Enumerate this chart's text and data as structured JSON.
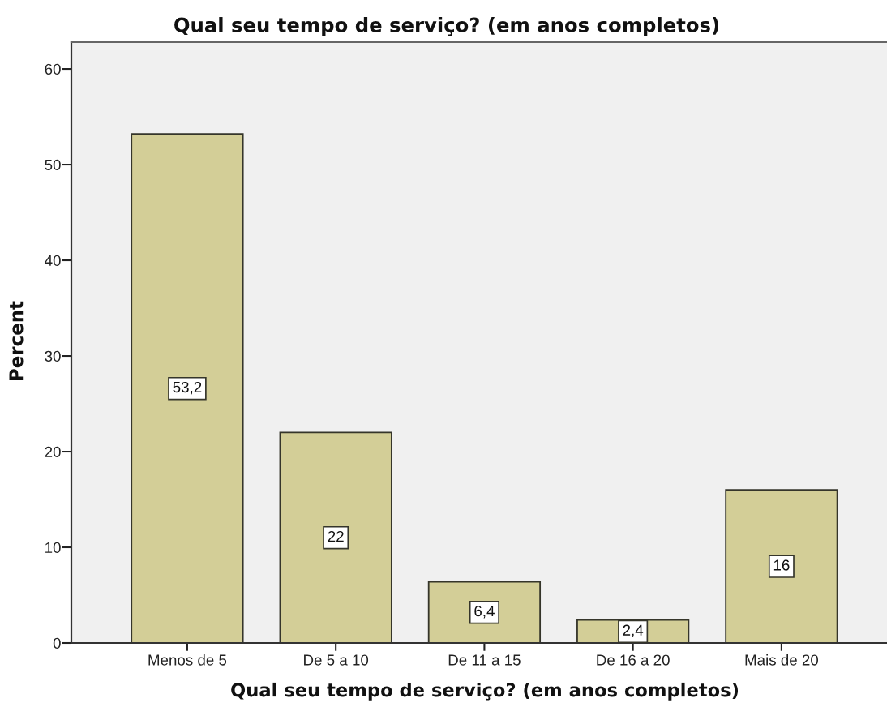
{
  "chart_data": {
    "type": "bar",
    "title": "Qual seu tempo de serviço? (em anos completos)",
    "xlabel": "Qual seu tempo de serviço? (em anos completos)",
    "ylabel": "Percent",
    "categories": [
      "Menos de 5",
      "De 5 a 10",
      "De 11 a 15",
      "De 16 a 20",
      "Mais de 20"
    ],
    "values": [
      53.2,
      22,
      6.4,
      2.4,
      16
    ],
    "color": "#d3ce97",
    "value_labels": [
      "53,2",
      "22",
      "6,4",
      "2,4",
      "16"
    ],
    "ylim": [
      0,
      62.8
    ],
    "yticks": [
      0,
      10,
      20,
      30,
      40,
      50,
      60
    ]
  }
}
